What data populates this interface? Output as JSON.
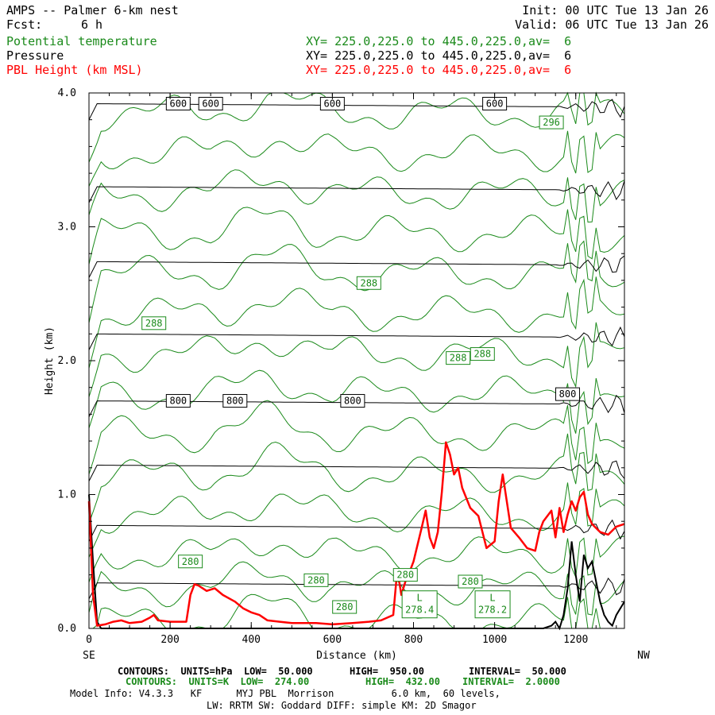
{
  "header": {
    "title": "AMPS -- Palmer 6-km nest",
    "fcst_label": "Fcst:",
    "fcst_value": "6 h",
    "init": "Init: 00 UTC Tue 13 Jan 26",
    "valid": "Valid: 06 UTC Tue 13 Jan 26",
    "fields": [
      {
        "name": "Potential temperature",
        "xy": "XY= 225.0,225.0 to 445.0,225.0,av=  6",
        "color": "#1a8a1a"
      },
      {
        "name": "Pressure",
        "xy": "XY= 225.0,225.0 to 445.0,225.0,av=  6",
        "color": "#000000"
      },
      {
        "name": "PBL Height (km MSL)",
        "xy": "XY= 225.0,225.0 to 445.0,225.0,av=  6",
        "color": "#ff0000"
      }
    ]
  },
  "chart_data": {
    "type": "line",
    "xlabel": "Distance (km)",
    "ylabel": "Height (km)",
    "xlim": [
      0,
      1320
    ],
    "ylim": [
      0.0,
      4.0
    ],
    "x_ticks": [
      "0",
      "200",
      "400",
      "600",
      "800",
      "1000",
      "1200"
    ],
    "x_tick_values": [
      0,
      200,
      400,
      600,
      800,
      1000,
      1200
    ],
    "y_ticks": [
      "0.0",
      "1.0",
      "2.0",
      "3.0",
      "4.0"
    ],
    "y_tick_values": [
      0,
      1,
      2,
      3,
      4
    ],
    "left_end_label": "SE",
    "right_end_label": "NW",
    "pressure_contours": [
      {
        "label": "600",
        "height_km": 3.92
      },
      {
        "label": "",
        "height_km": 3.3
      },
      {
        "label": "",
        "height_km": 2.74
      },
      {
        "label": "",
        "height_km": 2.2
      },
      {
        "label": "800",
        "height_km": 1.7
      },
      {
        "label": "",
        "height_km": 1.22
      },
      {
        "label": "",
        "height_km": 0.77
      },
      {
        "label": "",
        "height_km": 0.34
      }
    ],
    "pressure_labels": [
      {
        "text": "600",
        "x": 220,
        "y": 3.92
      },
      {
        "text": "600",
        "x": 300,
        "y": 3.92
      },
      {
        "text": "600",
        "x": 600,
        "y": 3.92
      },
      {
        "text": "600",
        "x": 1000,
        "y": 3.92
      },
      {
        "text": "800",
        "x": 220,
        "y": 1.7
      },
      {
        "text": "800",
        "x": 360,
        "y": 1.7
      },
      {
        "text": "800",
        "x": 650,
        "y": 1.7
      },
      {
        "text": "800",
        "x": 1180,
        "y": 1.75
      }
    ],
    "theta_labels": [
      {
        "text": "296",
        "x": 1140,
        "y": 3.78
      },
      {
        "text": "288",
        "x": 690,
        "y": 2.58
      },
      {
        "text": "288",
        "x": 160,
        "y": 2.28
      },
      {
        "text": "288",
        "x": 910,
        "y": 2.02
      },
      {
        "text": "288",
        "x": 970,
        "y": 2.05
      },
      {
        "text": "280",
        "x": 250,
        "y": 0.5
      },
      {
        "text": "280",
        "x": 560,
        "y": 0.36
      },
      {
        "text": "280",
        "x": 630,
        "y": 0.16
      },
      {
        "text": "280",
        "x": 780,
        "y": 0.4
      },
      {
        "text": "280",
        "x": 940,
        "y": 0.35
      }
    ],
    "lows": [
      {
        "mark": "L",
        "value": "278.4",
        "x": 815,
        "y": 0.15
      },
      {
        "mark": "L",
        "value": "278.2",
        "x": 995,
        "y": 0.15
      }
    ],
    "series": [
      {
        "name": "PBL Height (km MSL)",
        "color": "#ff0000",
        "x": [
          0,
          10,
          20,
          40,
          60,
          80,
          100,
          130,
          150,
          160,
          170,
          200,
          240,
          250,
          260,
          270,
          290,
          310,
          330,
          360,
          380,
          400,
          420,
          440,
          470,
          500,
          530,
          560,
          600,
          650,
          690,
          720,
          750,
          760,
          770,
          780,
          790,
          800,
          820,
          830,
          840,
          850,
          860,
          870,
          880,
          890,
          900,
          910,
          920,
          940,
          960,
          980,
          1000,
          1010,
          1020,
          1030,
          1040,
          1060,
          1080,
          1100,
          1110,
          1120,
          1140,
          1150,
          1160,
          1170,
          1180,
          1190,
          1200,
          1210,
          1220,
          1230,
          1240,
          1260,
          1280,
          1300,
          1320
        ],
        "y": [
          0.95,
          0.25,
          0.02,
          0.03,
          0.05,
          0.06,
          0.04,
          0.05,
          0.08,
          0.1,
          0.06,
          0.05,
          0.05,
          0.25,
          0.33,
          0.32,
          0.28,
          0.3,
          0.25,
          0.2,
          0.15,
          0.12,
          0.1,
          0.06,
          0.05,
          0.04,
          0.04,
          0.04,
          0.03,
          0.04,
          0.05,
          0.06,
          0.1,
          0.44,
          0.25,
          0.35,
          0.42,
          0.5,
          0.75,
          0.88,
          0.68,
          0.6,
          0.72,
          1.02,
          1.39,
          1.3,
          1.15,
          1.2,
          1.05,
          0.9,
          0.84,
          0.6,
          0.65,
          0.95,
          1.15,
          0.95,
          0.75,
          0.68,
          0.6,
          0.58,
          0.72,
          0.8,
          0.88,
          0.68,
          0.9,
          0.72,
          0.85,
          0.95,
          0.88,
          0.98,
          1.02,
          0.85,
          0.78,
          0.72,
          0.7,
          0.76,
          0.78
        ]
      }
    ],
    "terrain": {
      "x": [
        0,
        10,
        20,
        30,
        40,
        1120,
        1140,
        1150,
        1160,
        1170,
        1180,
        1190,
        1200,
        1210,
        1220,
        1230,
        1240,
        1250,
        1260,
        1270,
        1280,
        1290,
        1300,
        1310,
        1320
      ],
      "y": [
        1.0,
        0.5,
        0.05,
        0.0,
        0.0,
        0.0,
        0.02,
        0.05,
        0.0,
        0.1,
        0.3,
        0.65,
        0.4,
        0.2,
        0.55,
        0.45,
        0.5,
        0.35,
        0.2,
        0.1,
        0.05,
        0.02,
        0.1,
        0.15,
        0.2
      ]
    }
  },
  "footer": {
    "line1_contours": "CONTOURS:  UNITS=hPa  LOW=  50.000",
    "line1_high": "HIGH=  950.00",
    "line1_interval": "INTERVAL=  50.000",
    "line2_contours": "CONTOURS:  UNITS=K  LOW=  274.00",
    "line2_high": "HIGH=  432.00",
    "line2_interval": "INTERVAL=  2.0000",
    "model_info": "Model Info: V4.3.3   KF      MYJ PBL  Morrison          6.0 km,  60 levels,",
    "physics": "LW: RRTM SW: Goddard DIFF: simple KM: 2D Smagor"
  }
}
